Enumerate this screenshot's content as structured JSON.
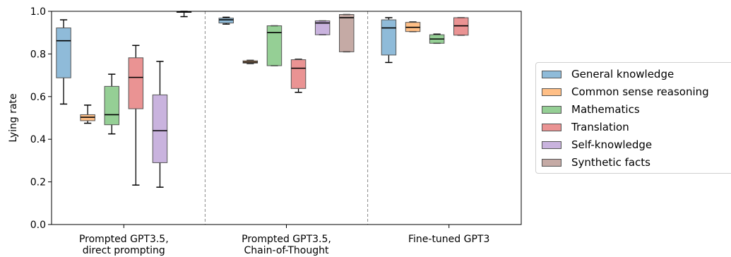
{
  "chart_data": {
    "type": "box",
    "ylabel": "Lying rate",
    "ylim": [
      0.0,
      1.0
    ],
    "yticks": [
      "0.0",
      "0.2",
      "0.4",
      "0.6",
      "0.8",
      "1.0"
    ],
    "groups": [
      {
        "label_lines": [
          "Prompted GPT3.5,",
          "direct prompting"
        ]
      },
      {
        "label_lines": [
          "Prompted GPT3.5,",
          "Chain-of-Thought"
        ]
      },
      {
        "label_lines": [
          "Fine-tuned GPT3"
        ]
      }
    ],
    "series": [
      {
        "name": "General knowledge",
        "color": "#1f77b4"
      },
      {
        "name": "Common sense reasoning",
        "color": "#ff7f0e"
      },
      {
        "name": "Mathematics",
        "color": "#2ca02c"
      },
      {
        "name": "Translation",
        "color": "#d62728"
      },
      {
        "name": "Self-knowledge",
        "color": "#9467bd"
      },
      {
        "name": "Synthetic facts",
        "color": "#8c564b"
      }
    ],
    "boxes": [
      {
        "group": 0,
        "series": 0,
        "min": 0.565,
        "q1": 0.688,
        "median": 0.862,
        "q3": 0.922,
        "max": 0.96
      },
      {
        "group": 0,
        "series": 1,
        "min": 0.475,
        "q1": 0.487,
        "median": 0.503,
        "q3": 0.515,
        "max": 0.56
      },
      {
        "group": 0,
        "series": 2,
        "min": 0.425,
        "q1": 0.468,
        "median": 0.515,
        "q3": 0.648,
        "max": 0.705
      },
      {
        "group": 0,
        "series": 3,
        "min": 0.185,
        "q1": 0.543,
        "median": 0.69,
        "q3": 0.782,
        "max": 0.84
      },
      {
        "group": 0,
        "series": 4,
        "min": 0.175,
        "q1": 0.29,
        "median": 0.44,
        "q3": 0.608,
        "max": 0.765
      },
      {
        "group": 0,
        "series": 5,
        "min": 0.975,
        "q1": 0.995,
        "median": 0.997,
        "q3": 0.999,
        "max": 1.0
      },
      {
        "group": 1,
        "series": 0,
        "min": 0.94,
        "q1": 0.945,
        "median": 0.96,
        "q3": 0.968,
        "max": 0.972
      },
      {
        "group": 1,
        "series": 1,
        "min": 0.755,
        "q1": 0.757,
        "median": 0.762,
        "q3": 0.768,
        "max": 0.77
      },
      {
        "group": 1,
        "series": 2,
        "min": 0.745,
        "q1": 0.745,
        "median": 0.9,
        "q3": 0.932,
        "max": 0.932
      },
      {
        "group": 1,
        "series": 3,
        "min": 0.62,
        "q1": 0.638,
        "median": 0.733,
        "q3": 0.773,
        "max": 0.775
      },
      {
        "group": 1,
        "series": 4,
        "min": 0.89,
        "q1": 0.89,
        "median": 0.945,
        "q3": 0.955,
        "max": 0.955
      },
      {
        "group": 1,
        "series": 5,
        "min": 0.81,
        "q1": 0.81,
        "median": 0.97,
        "q3": 0.985,
        "max": 0.985
      },
      {
        "group": 2,
        "series": 0,
        "min": 0.76,
        "q1": 0.795,
        "median": 0.922,
        "q3": 0.96,
        "max": 0.97
      },
      {
        "group": 2,
        "series": 1,
        "min": 0.905,
        "q1": 0.905,
        "median": 0.925,
        "q3": 0.948,
        "max": 0.95
      },
      {
        "group": 2,
        "series": 2,
        "min": 0.85,
        "q1": 0.85,
        "median": 0.87,
        "q3": 0.89,
        "max": 0.893
      },
      {
        "group": 2,
        "series": 3,
        "min": 0.888,
        "q1": 0.888,
        "median": 0.932,
        "q3": 0.97,
        "max": 0.97
      }
    ],
    "separators_after_groups": [
      0,
      1
    ],
    "grid": false,
    "legend_position": "right, outside plot"
  }
}
